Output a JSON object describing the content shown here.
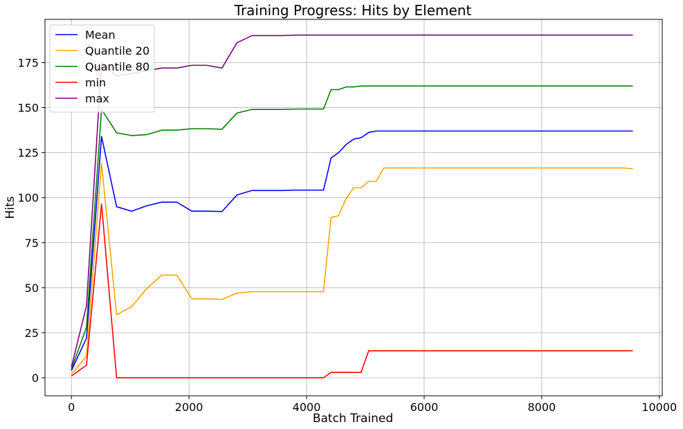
{
  "chart_data": {
    "type": "line",
    "title": "Training Progress: Hits by Element",
    "xlabel": "Batch Trained",
    "ylabel": "Hits",
    "xlim": [
      -450,
      10050
    ],
    "ylim": [
      -10,
      199
    ],
    "xticks": [
      0,
      2000,
      4000,
      6000,
      8000,
      10000
    ],
    "yticks": [
      0,
      25,
      50,
      75,
      100,
      125,
      150,
      175
    ],
    "grid": true,
    "legend_position": "top-left",
    "x": [
      0,
      256,
      512,
      768,
      1024,
      1280,
      1536,
      1792,
      2048,
      2304,
      2560,
      2816,
      3072,
      3328,
      3584,
      3840,
      4096,
      4288,
      4416,
      4544,
      4672,
      4800,
      4928,
      5056,
      5184,
      5312,
      5568,
      6000,
      7000,
      8000,
      9000,
      9400,
      9550
    ],
    "series": [
      {
        "name": "Mean",
        "color": "#0000ff",
        "values": [
          4,
          22,
          134,
          95,
          92.5,
          95.5,
          97.5,
          97.5,
          92.5,
          92.5,
          92.3,
          101.5,
          104,
          104,
          104,
          104.2,
          104.2,
          104.2,
          122,
          125,
          129.5,
          132.5,
          133.3,
          136.2,
          137,
          137,
          137,
          137,
          137,
          137,
          137,
          137,
          137
        ]
      },
      {
        "name": "Quantile 20",
        "color": "#ffa500",
        "values": [
          2,
          12,
          119,
          35,
          39.5,
          49.5,
          57,
          57,
          43.8,
          43.8,
          43.5,
          47,
          47.8,
          47.8,
          47.8,
          47.8,
          47.8,
          47.8,
          89,
          90,
          99.5,
          105.5,
          105.5,
          109,
          109,
          116.5,
          116.5,
          116.5,
          116.5,
          116.5,
          116.5,
          116.5,
          116
        ]
      },
      {
        "name": "Quantile 80",
        "color": "#008000",
        "values": [
          5,
          28,
          149,
          136,
          134.5,
          135,
          137.5,
          137.5,
          138.3,
          138.3,
          138,
          147,
          149,
          149,
          149,
          149.2,
          149.2,
          149.2,
          160,
          160,
          161.5,
          161.5,
          162,
          162,
          162,
          162,
          162,
          162,
          162,
          162,
          162,
          162,
          162
        ]
      },
      {
        "name": "min",
        "color": "#ff0000",
        "values": [
          1,
          7,
          96.5,
          0,
          0,
          0,
          0,
          0,
          0,
          0,
          0,
          0,
          0,
          0,
          0,
          0,
          0,
          0,
          3,
          3,
          3,
          3,
          3,
          15,
          15,
          15,
          15,
          15,
          15,
          15,
          15,
          15,
          15
        ]
      },
      {
        "name": "max",
        "color": "#800080",
        "values": [
          6,
          40,
          175,
          167.5,
          169,
          170.5,
          172,
          172,
          173.5,
          173.5,
          172,
          186,
          190,
          190,
          190,
          190.3,
          190.3,
          190.3,
          190.3,
          190.3,
          190.3,
          190.3,
          190.3,
          190.3,
          190.3,
          190.3,
          190.3,
          190.3,
          190.3,
          190.3,
          190.3,
          190.3,
          190.3
        ]
      }
    ]
  }
}
